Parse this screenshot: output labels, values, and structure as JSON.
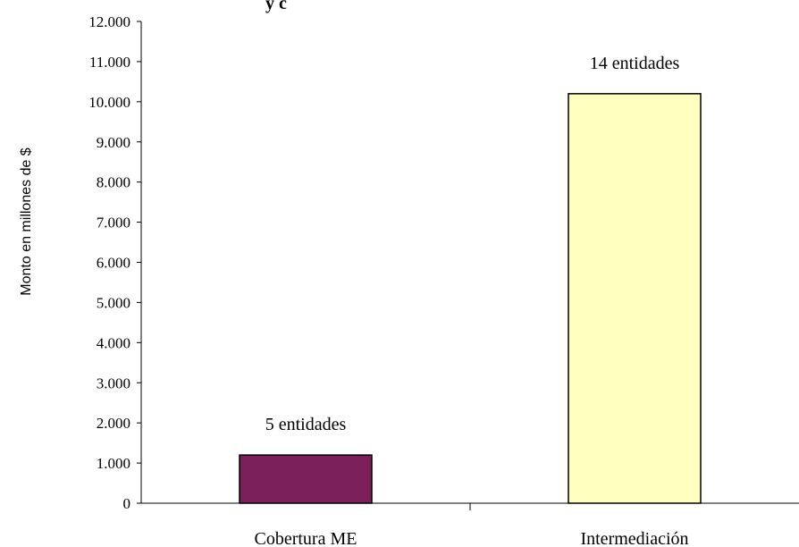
{
  "chart_data": {
    "type": "bar",
    "title_fragment": "y c",
    "ylabel": "Monto en millones de $",
    "xlabel": "",
    "ylim": [
      0,
      12000
    ],
    "y_ticks": [
      0,
      1000,
      2000,
      3000,
      4000,
      5000,
      6000,
      7000,
      8000,
      9000,
      10000,
      11000,
      12000
    ],
    "y_tick_labels": [
      "0",
      "1.000",
      "2.000",
      "3.000",
      "4.000",
      "5.000",
      "6.000",
      "7.000",
      "8.000",
      "9.000",
      "10.000",
      "11.000",
      "12.000"
    ],
    "categories": [
      "Cobertura ME",
      "Intermediación"
    ],
    "values": [
      1200,
      10200
    ],
    "data_labels": [
      "5 entidades",
      "14 entidades"
    ],
    "colors": [
      "#7a1f5a",
      "#ffffc0"
    ],
    "grid": false,
    "legend": "none"
  }
}
